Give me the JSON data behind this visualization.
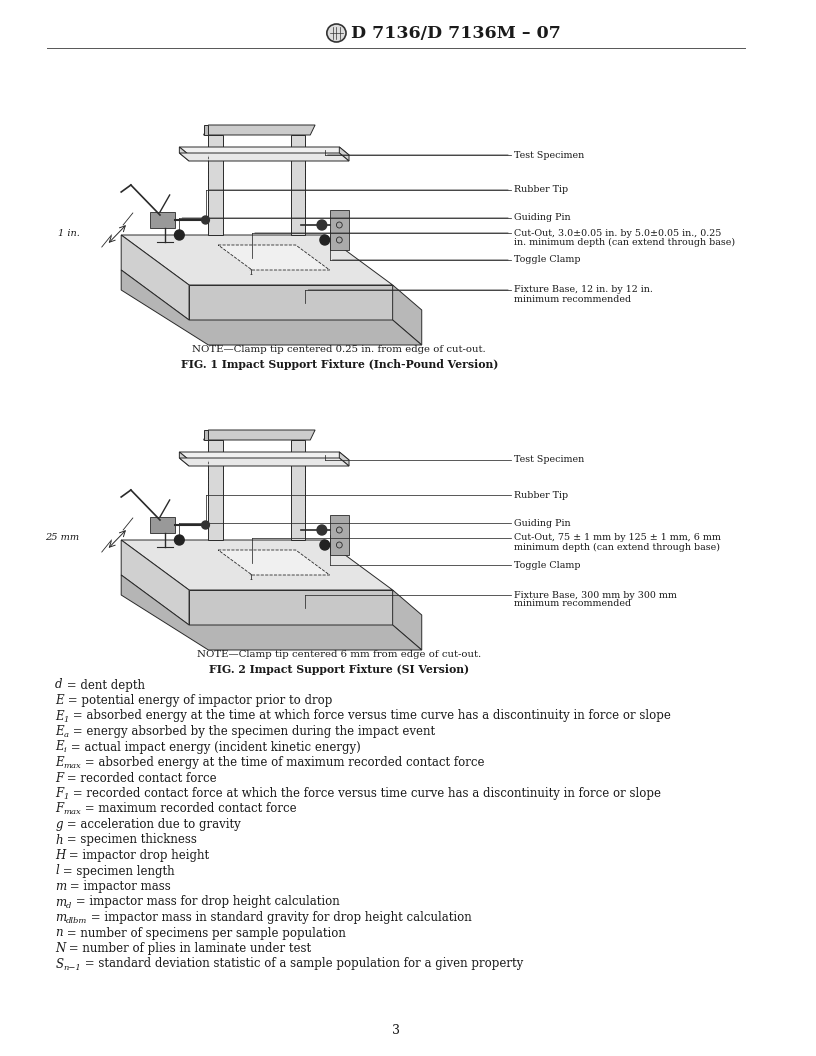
{
  "title": "D 7136/D 7136M – 07",
  "page_number": "3",
  "background_color": "#ffffff",
  "text_color": "#2a2a2a",
  "fig1_caption_note": "NOTE—Clamp tip centered 0.25 in. from edge of cut-out.",
  "fig1_caption_bold": "FIG. 1 Impact Support Fixture (Inch-Pound Version)",
  "fig2_caption_note": "NOTE—Clamp tip centered 6 mm from edge of cut-out.",
  "fig2_caption_bold": "FIG. 2 Impact Support Fixture (SI Version)",
  "fig1_label_1in": "1 in.",
  "fig2_label_25mm": "25 mm",
  "label_test_specimen": "Test Specimen",
  "label_rubber_tip": "Rubber Tip",
  "label_guiding_pin": "Guiding Pin",
  "label_cutout_in": "Cut-Out, 3.0±0.05 in. by 5.0±0.05 in., 0.25\nin. minimum depth (can extend through base)",
  "label_toggle_clamp": "Toggle Clamp",
  "label_fixture_base_in": "Fixture Base, 12 in. by 12 in.\nminimum recommended",
  "label_cutout_mm": "Cut-Out, 75 ± 1 mm by 125 ± 1 mm, 6 mm\nminimum depth (can extend through base)",
  "label_fixture_base_mm": "Fixture Base, 300 mm by 300 mm\nminimum recommended",
  "definitions": [
    {
      "italic": "d",
      "sub": "",
      "text": " = dent depth"
    },
    {
      "italic": "E",
      "sub": "",
      "text": " = potential energy of impactor prior to drop"
    },
    {
      "italic": "E",
      "sub": "1",
      "text": " = absorbed energy at the time at which force versus time curve has a discontinuity in force or slope"
    },
    {
      "italic": "E",
      "sub": "a",
      "text": " = energy absorbed by the specimen during the impact event"
    },
    {
      "italic": "E",
      "sub": "i",
      "text": " = actual impact energy (incident kinetic energy)"
    },
    {
      "italic": "E",
      "sub": "max",
      "text": " = absorbed energy at the time of maximum recorded contact force"
    },
    {
      "italic": "F",
      "sub": "",
      "text": " = recorded contact force"
    },
    {
      "italic": "F",
      "sub": "1",
      "text": " = recorded contact force at which the force versus time curve has a discontinuity in force or slope"
    },
    {
      "italic": "F",
      "sub": "max",
      "text": " = maximum recorded contact force"
    },
    {
      "italic": "g",
      "sub": "",
      "text": " = acceleration due to gravity"
    },
    {
      "italic": "h",
      "sub": "",
      "text": " = specimen thickness"
    },
    {
      "italic": "H",
      "sub": "",
      "text": " = impactor drop height"
    },
    {
      "italic": "l",
      "sub": "",
      "text": " = specimen length"
    },
    {
      "italic": "m",
      "sub": "",
      "text": " = impactor mass"
    },
    {
      "italic": "m",
      "sub": "d",
      "text": " = impactor mass for drop height calculation"
    },
    {
      "italic": "m",
      "sub": "dlbm",
      "text": " = impactor mass in standard gravity for drop height calculation"
    },
    {
      "italic": "n",
      "sub": "",
      "text": " = number of specimens per sample population"
    },
    {
      "italic": "N",
      "sub": "",
      "text": " = number of plies in laminate under test"
    },
    {
      "italic": "S",
      "sub": "n−1",
      "text": " = standard deviation statistic of a sample population for a given property"
    }
  ]
}
